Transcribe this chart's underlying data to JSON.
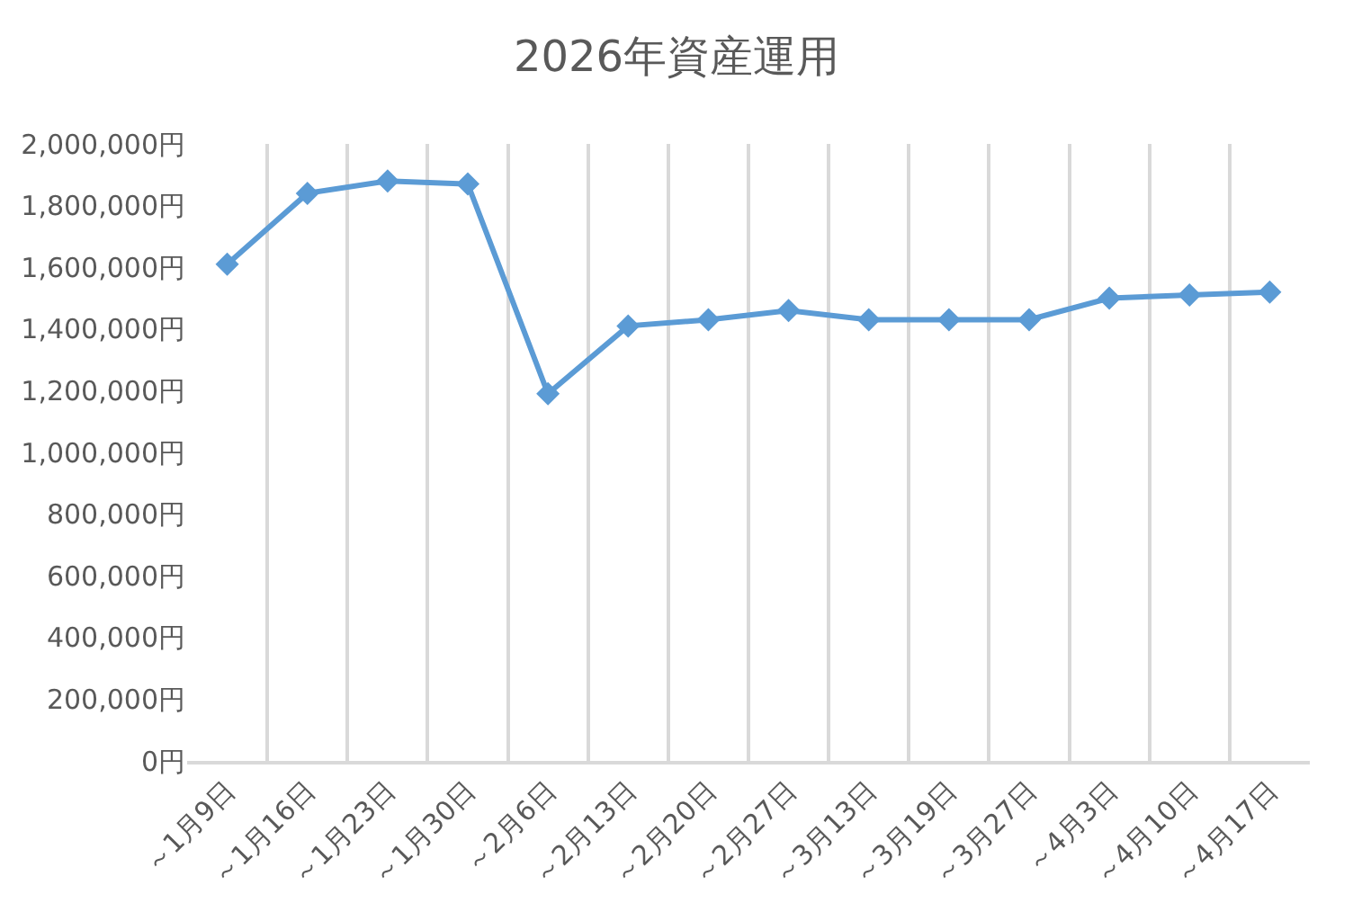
{
  "chart_data": {
    "type": "line",
    "title": "2026年資産運用",
    "categories": [
      "～1月9日",
      "～1月16日",
      "～1月23日",
      "～1月30日",
      "～2月6日",
      "～2月13日",
      "～2月20日",
      "～2月27日",
      "～3月13日",
      "～3月19日",
      "～3月27日",
      "～4月3日",
      "～4月10日",
      "～4月17日"
    ],
    "series": [
      {
        "color": "#5b9bd5",
        "values": [
          1610000,
          1840000,
          1880000,
          1870000,
          1190000,
          1410000,
          1430000,
          1460000,
          1430000,
          1430000,
          1430000,
          1500000,
          1510000,
          1520000
        ]
      }
    ],
    "ylim": [
      0,
      2000000
    ],
    "yticks": [
      {
        "value": 0,
        "label": "0円"
      },
      {
        "value": 200000,
        "label": "200,000円"
      },
      {
        "value": 400000,
        "label": "400,000円"
      },
      {
        "value": 600000,
        "label": "600,000円"
      },
      {
        "value": 800000,
        "label": "800,000円"
      },
      {
        "value": 1000000,
        "label": "1,000,000円"
      },
      {
        "value": 1200000,
        "label": "1,200,000円"
      },
      {
        "value": 1400000,
        "label": "1,400,000円"
      },
      {
        "value": 1600000,
        "label": "1,600,000円"
      },
      {
        "value": 1800000,
        "label": "1,800,000円"
      },
      {
        "value": 2000000,
        "label": "2,000,000円"
      }
    ],
    "grid": "x",
    "marker": "diamond",
    "line_style": "solid"
  }
}
